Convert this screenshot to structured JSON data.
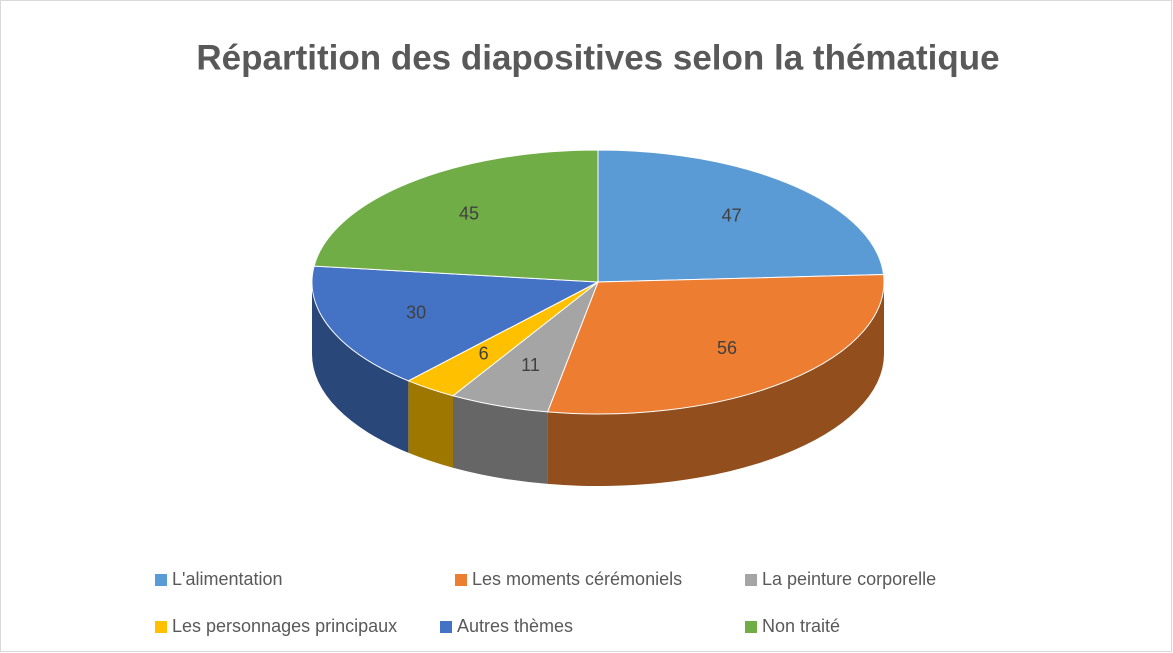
{
  "chart_data": {
    "type": "pie",
    "title": "Répartition des diapositives selon la thématique",
    "categories": [
      "L'alimentation",
      "Les moments cérémoniels",
      "La peinture corporelle",
      "Les personnages principaux",
      "Autres thèmes",
      "Non traité"
    ],
    "values": [
      47,
      56,
      11,
      6,
      30,
      45
    ],
    "colors": [
      "#5b9bd5",
      "#ed7d31",
      "#a5a5a5",
      "#ffc000",
      "#4472c4",
      "#70ad47"
    ],
    "legend": "bottom"
  }
}
